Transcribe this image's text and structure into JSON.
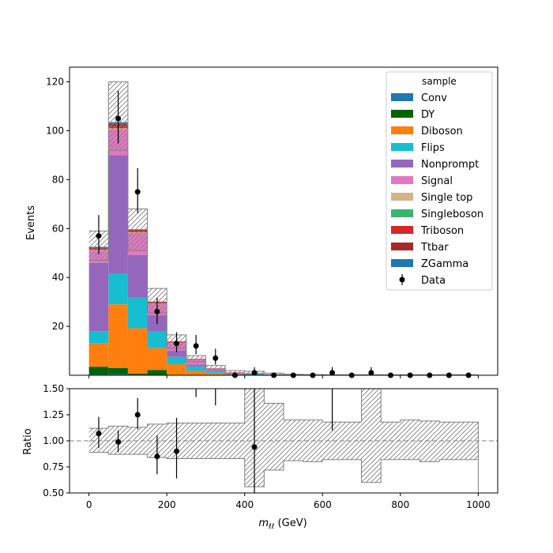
{
  "chart_data": [
    {
      "type": "stacked-histogram",
      "xlabel_main": "m",
      "xlabel_sub": "ℓℓ",
      "xlabel_unit": " (GeV)",
      "ylabel": "Events",
      "xlim": [
        -50,
        1050
      ],
      "ylim": [
        0,
        126
      ],
      "xticks": [
        0,
        200,
        400,
        600,
        800,
        1000
      ],
      "yticks": [
        20,
        40,
        60,
        80,
        100,
        120
      ],
      "bin_edges": [
        0,
        50,
        100,
        150,
        200,
        250,
        300,
        350,
        400,
        450,
        500,
        550,
        600,
        650,
        700,
        750,
        800,
        850,
        900,
        950,
        1000
      ],
      "legend": {
        "title": "sample",
        "placement": "top-right"
      },
      "series": [
        {
          "name": "Conv",
          "color": "#1f77b4",
          "values": [
            0.3,
            0.5,
            0.2,
            0.1,
            0,
            0,
            0,
            0,
            0,
            0,
            0,
            0,
            0,
            0,
            0,
            0,
            0,
            0,
            0,
            0
          ]
        },
        {
          "name": "DY",
          "color": "#006400",
          "values": [
            3.2,
            2.5,
            0.5,
            2.0,
            0,
            0,
            0,
            0,
            0,
            0,
            0,
            0,
            0,
            0,
            0,
            0,
            0,
            0,
            0,
            0
          ]
        },
        {
          "name": "Diboson",
          "color": "#ff7f0e",
          "values": [
            9.5,
            26,
            18.5,
            9,
            4.5,
            1.8,
            0.7,
            0.3,
            0.2,
            0.1,
            0.05,
            0,
            0,
            0,
            0,
            0,
            0,
            0,
            0,
            0
          ]
        },
        {
          "name": "Flips",
          "color": "#17becf",
          "values": [
            5,
            12.5,
            12.5,
            7,
            3,
            1.8,
            0.8,
            0.3,
            0.5,
            0.2,
            0.1,
            0.1,
            0.05,
            0,
            0,
            0,
            0,
            0,
            0,
            0
          ]
        },
        {
          "name": "Nonprompt",
          "color": "#9467bd",
          "values": [
            28,
            48.5,
            17.5,
            6.5,
            2.5,
            0.8,
            0.3,
            0.1,
            0,
            0,
            0,
            0,
            0,
            0,
            0,
            0,
            0,
            0,
            0,
            0
          ]
        },
        {
          "name": "Signal",
          "color": "#e377c2",
          "values": [
            5,
            10.5,
            9,
            4.5,
            3.2,
            2,
            1,
            0.5,
            0.2,
            0.1,
            0.05,
            0.05,
            0,
            0,
            0,
            0,
            0,
            0,
            0,
            0
          ]
        },
        {
          "name": "Single top",
          "color": "#d2b48c",
          "values": [
            0.3,
            0.5,
            0.3,
            0.2,
            0.1,
            0,
            0,
            0,
            0,
            0,
            0,
            0,
            0,
            0,
            0,
            0,
            0,
            0,
            0,
            0
          ]
        },
        {
          "name": "Singleboson",
          "color": "#3cb371",
          "values": [
            0,
            0,
            0,
            0,
            0,
            0,
            0,
            0,
            0,
            0,
            0,
            0,
            0,
            0,
            0,
            0,
            0,
            0,
            0,
            0
          ]
        },
        {
          "name": "Triboson",
          "color": "#d62728",
          "values": [
            0.5,
            0.8,
            0.5,
            0.4,
            0.3,
            0.2,
            0.1,
            0.05,
            0.05,
            0,
            0,
            0,
            0,
            0,
            0,
            0,
            0,
            0,
            0,
            0
          ]
        },
        {
          "name": "Ttbar",
          "color": "#a52a2a",
          "values": [
            0.4,
            1.0,
            0.5,
            0.3,
            0.2,
            0.1,
            0,
            0,
            0,
            0,
            0,
            0,
            0,
            0,
            0,
            0,
            0,
            0,
            0,
            0
          ]
        },
        {
          "name": "ZGamma",
          "color": "#1f77b4",
          "values": [
            0.3,
            0.7,
            0.2,
            0.1,
            0,
            0,
            0,
            0,
            0,
            0,
            0,
            0,
            0,
            0,
            0,
            0,
            0,
            0,
            0,
            0
          ]
        }
      ],
      "uncertainty_band": {
        "up": [
          59,
          120,
          68,
          35.5,
          16.5,
          8,
          4,
          1.9,
          1.6,
          0.9,
          0.4,
          0.3,
          0.2,
          0.2,
          0.2,
          0.2,
          0.2,
          0.2,
          0.2,
          0.2
        ],
        "down": [
          47,
          92,
          51,
          25.5,
          11,
          5.5,
          2.2,
          0.6,
          0.2,
          0.2,
          0.1,
          0.05,
          0.05,
          0.05,
          0.05,
          0.05,
          0.05,
          0.05,
          0.05,
          0.05
        ]
      },
      "data": {
        "name": "Data",
        "x": [
          25,
          75,
          125,
          175,
          225,
          275,
          325,
          375,
          425,
          475,
          525,
          575,
          625,
          675,
          725,
          775,
          825,
          875,
          925,
          975
        ],
        "y": [
          57,
          105,
          75,
          26,
          13,
          12,
          7,
          0,
          1,
          0,
          0,
          0,
          1,
          0,
          1,
          0,
          0,
          0,
          0,
          0
        ],
        "err_up": [
          8.5,
          11.3,
          9.7,
          5.7,
          4.6,
          4.5,
          3.8,
          0,
          2.3,
          0,
          0,
          0,
          2.3,
          0,
          2.3,
          0,
          0,
          0,
          0,
          0
        ],
        "err_down": [
          7.5,
          10.2,
          8.6,
          5.1,
          3.6,
          3.4,
          2.6,
          0,
          0.8,
          0,
          0,
          0,
          0.8,
          0,
          0.8,
          0,
          0,
          0,
          0,
          0
        ]
      }
    },
    {
      "type": "ratio",
      "ylabel": "Ratio",
      "ylim": [
        0.5,
        1.5
      ],
      "yticks": [
        0.5,
        0.75,
        1.0,
        1.25,
        1.5
      ],
      "ytick_labels": [
        "0.50",
        "0.75",
        "1.00",
        "1.25",
        "1.50"
      ],
      "reference_line": 1.0,
      "band": {
        "up": [
          1.12,
          1.14,
          1.13,
          1.16,
          1.17,
          1.17,
          1.17,
          1.17,
          1.5,
          1.36,
          1.2,
          1.2,
          1.18,
          1.18,
          1.5,
          1.18,
          1.2,
          1.19,
          1.18,
          1.18
        ],
        "down": [
          0.89,
          0.87,
          0.87,
          0.84,
          0.83,
          0.83,
          0.83,
          0.83,
          0.56,
          0.72,
          0.81,
          0.8,
          0.82,
          0.82,
          0.6,
          0.82,
          0.82,
          0.8,
          0.82,
          0.82
        ]
      },
      "points": {
        "x": [
          25,
          75,
          125,
          175,
          225,
          275,
          325,
          425,
          625
        ],
        "y": [
          1.07,
          0.99,
          1.25,
          0.85,
          0.9,
          1.7,
          1.7,
          0.94,
          1.8
        ],
        "err_up": [
          0.16,
          0.11,
          0.16,
          0.2,
          0.32,
          0.35,
          0.5,
          2.2,
          2.3
        ],
        "err_down": [
          0.14,
          0.1,
          0.14,
          0.17,
          0.26,
          0.28,
          0.36,
          0.7,
          0.7
        ]
      }
    }
  ]
}
